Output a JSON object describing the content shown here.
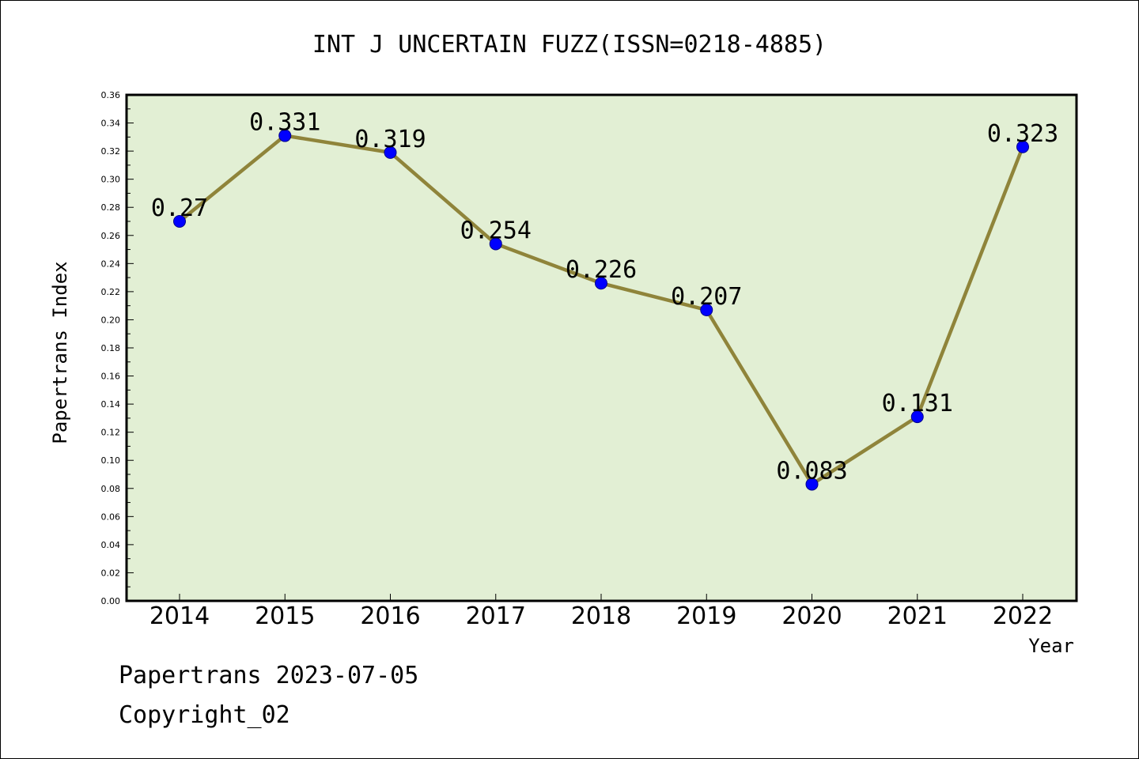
{
  "colors": {
    "plot_background": "#e2efd4",
    "line": "#8f843a",
    "marker": "#0000ff",
    "marker_edge": "#00008b",
    "frame": "#000000"
  },
  "footer": {
    "date_line": "Papertrans 2023-07-05",
    "copyright": "Copyright_02"
  },
  "chart_data": {
    "type": "line",
    "title": "INT J UNCERTAIN FUZZ(ISSN=0218-4885)",
    "xlabel": "Year",
    "ylabel": "Papertrans Index",
    "categories": [
      "2014",
      "2015",
      "2016",
      "2017",
      "2018",
      "2019",
      "2020",
      "2021",
      "2022"
    ],
    "series": [
      {
        "values": [
          0.27,
          0.331,
          0.319,
          0.254,
          0.226,
          0.207,
          0.083,
          0.131,
          0.323
        ],
        "labels": [
          "0.27",
          "0.331",
          "0.319",
          "0.254",
          "0.226",
          "0.207",
          "0.083",
          "0.131",
          "0.323"
        ]
      }
    ],
    "ylim": [
      0,
      0.36
    ],
    "yticks": [
      "0.00",
      "0.02",
      "0.04",
      "0.06",
      "0.08",
      "0.10",
      "0.12",
      "0.14",
      "0.16",
      "0.18",
      "0.20",
      "0.22",
      "0.24",
      "0.26",
      "0.28",
      "0.30",
      "0.32",
      "0.34",
      "0.36"
    ],
    "grid": false,
    "legend": "none"
  }
}
